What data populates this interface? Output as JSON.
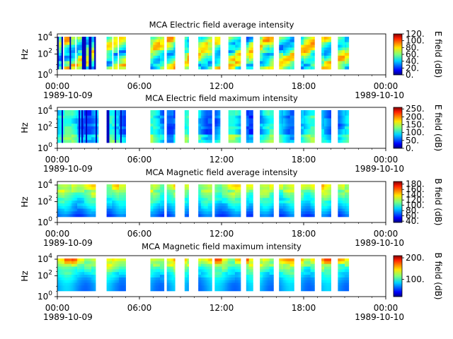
{
  "chart_data": [
    {
      "type": "heatmap",
      "title": "MCA  Electric field average intensity",
      "ylabel": "Hz",
      "y_scale": "log",
      "y_ticks": [
        "10^4",
        "10^2",
        "10^0"
      ],
      "x_ticks": [
        "00:00",
        "06:00",
        "12:00",
        "18:00",
        "00:00"
      ],
      "x_dates": [
        "1989-10-09",
        "1989-10-10"
      ],
      "x_range": [
        "1989-10-09 00:00",
        "1989-10-10 00:00"
      ],
      "colorbar_label": "E field (dB)",
      "colorbar_ticks": [
        "0.",
        "20.",
        "40.",
        "60.",
        "80.",
        "100.",
        "120."
      ],
      "colorbar_range": [
        0,
        120
      ],
      "data_coverage_utc_hours": [
        [
          0.0,
          0.4
        ],
        [
          0.5,
          1.3
        ],
        [
          1.4,
          2.8
        ],
        [
          3.6,
          4.0
        ],
        [
          4.1,
          4.4
        ],
        [
          4.5,
          5.0
        ],
        [
          6.8,
          7.8
        ],
        [
          8.0,
          8.6
        ],
        [
          9.3,
          9.6
        ],
        [
          10.3,
          11.3
        ],
        [
          11.5,
          11.9
        ],
        [
          12.5,
          13.4
        ],
        [
          13.8,
          14.3
        ],
        [
          14.8,
          15.8
        ],
        [
          16.2,
          17.3
        ],
        [
          17.8,
          18.8
        ],
        [
          19.3,
          20.0
        ],
        [
          20.5,
          21.3
        ]
      ]
    },
    {
      "type": "heatmap",
      "title": "MCA  Electric field maximum intensity",
      "ylabel": "Hz",
      "y_scale": "log",
      "y_ticks": [
        "10^4",
        "10^2",
        "10^0"
      ],
      "x_ticks": [
        "00:00",
        "06:00",
        "12:00",
        "18:00",
        "00:00"
      ],
      "x_dates": [
        "1989-10-09",
        "1989-10-10"
      ],
      "x_range": [
        "1989-10-09 00:00",
        "1989-10-10 00:00"
      ],
      "colorbar_label": "E field (dB)",
      "colorbar_ticks": [
        "0.",
        "50.",
        "100.",
        "150.",
        "200.",
        "250."
      ],
      "colorbar_range": [
        0,
        260
      ],
      "data_coverage_utc_hours": [
        [
          0.0,
          2.8
        ],
        [
          2.8,
          3.0
        ],
        [
          3.6,
          5.0
        ],
        [
          6.8,
          7.8
        ],
        [
          8.0,
          8.6
        ],
        [
          9.3,
          9.6
        ],
        [
          10.3,
          11.3
        ],
        [
          11.5,
          11.9
        ],
        [
          12.5,
          13.4
        ],
        [
          13.8,
          14.3
        ],
        [
          14.8,
          15.8
        ],
        [
          16.2,
          17.3
        ],
        [
          17.8,
          18.8
        ],
        [
          19.3,
          20.0
        ],
        [
          20.5,
          21.3
        ]
      ]
    },
    {
      "type": "heatmap",
      "title": "MCA  Magnetic field average intensity",
      "ylabel": "Hz",
      "y_scale": "log",
      "y_ticks": [
        "10^4",
        "10^2",
        "10^0"
      ],
      "x_ticks": [
        "00:00",
        "06:00",
        "12:00",
        "18:00",
        "00:00"
      ],
      "x_dates": [
        "1989-10-09",
        "1989-10-10"
      ],
      "x_range": [
        "1989-10-09 00:00",
        "1989-10-10 00:00"
      ],
      "colorbar_label": "B field (dB)",
      "colorbar_ticks": [
        "40.",
        "60.",
        "80.",
        "100.",
        "120.",
        "140.",
        "160.",
        "180."
      ],
      "colorbar_range": [
        35,
        190
      ],
      "data_coverage_utc_hours": [
        [
          0.0,
          2.8
        ],
        [
          3.6,
          5.0
        ],
        [
          6.8,
          7.8
        ],
        [
          8.0,
          8.6
        ],
        [
          9.3,
          9.6
        ],
        [
          10.3,
          11.3
        ],
        [
          11.5,
          13.4
        ],
        [
          13.8,
          14.3
        ],
        [
          14.8,
          15.8
        ],
        [
          16.2,
          17.3
        ],
        [
          17.8,
          18.8
        ],
        [
          19.3,
          20.0
        ],
        [
          20.5,
          21.3
        ]
      ]
    },
    {
      "type": "heatmap",
      "title": "MCA  Magnetic field maximum intensity",
      "ylabel": "Hz",
      "y_scale": "log",
      "y_ticks": [
        "10^4",
        "10^2",
        "10^0"
      ],
      "x_ticks": [
        "00:00",
        "06:00",
        "12:00",
        "18:00",
        "00:00"
      ],
      "x_dates": [
        "1989-10-09",
        "1989-10-10"
      ],
      "x_range": [
        "1989-10-09 00:00",
        "1989-10-10 00:00"
      ],
      "colorbar_label": "B field (dB)",
      "colorbar_ticks": [
        "100.",
        "200."
      ],
      "colorbar_range": [
        20,
        210
      ],
      "data_coverage_utc_hours": [
        [
          0.0,
          2.8
        ],
        [
          3.6,
          5.0
        ],
        [
          6.8,
          7.8
        ],
        [
          8.0,
          8.6
        ],
        [
          9.3,
          9.6
        ],
        [
          10.3,
          11.3
        ],
        [
          11.5,
          13.4
        ],
        [
          13.8,
          14.3
        ],
        [
          14.8,
          15.8
        ],
        [
          16.2,
          17.3
        ],
        [
          17.8,
          18.8
        ],
        [
          19.3,
          20.0
        ],
        [
          20.5,
          21.3
        ]
      ]
    }
  ]
}
